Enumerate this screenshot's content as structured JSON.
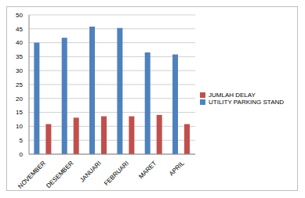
{
  "chart_data": {
    "type": "bar",
    "categories": [
      "NOVEMBER",
      "DESEMBER",
      "JANUARI",
      "FEBRUARI",
      "MARET",
      "APRIL"
    ],
    "series": [
      {
        "name": "UTILITY PARKING STAND",
        "color": "#4f81bd",
        "values": [
          40,
          41.8,
          45.8,
          45.3,
          36.5,
          35.8
        ]
      },
      {
        "name": "JUMLAH DELAY",
        "color": "#c0504d",
        "values": [
          10.8,
          13.1,
          13.6,
          13.6,
          14.1,
          10.8
        ]
      }
    ],
    "ylim": [
      0,
      50
    ],
    "yticks": [
      0,
      5,
      10,
      15,
      20,
      25,
      30,
      35,
      40,
      45,
      50
    ],
    "grid": true,
    "legend": "right"
  }
}
